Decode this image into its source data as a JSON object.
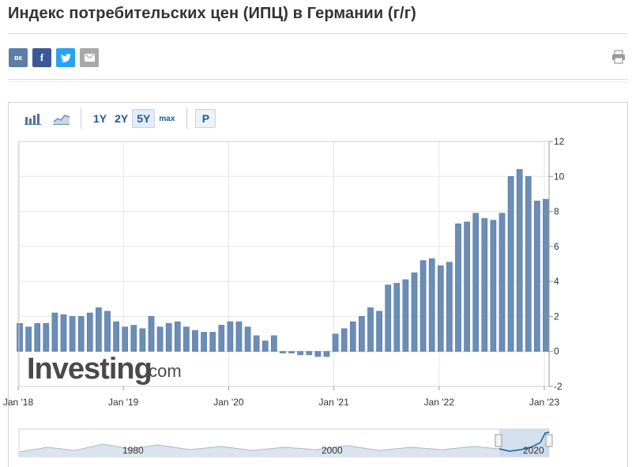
{
  "page": {
    "title": "Индекс потребительских цен (ИПЦ) в Германии (г/г)"
  },
  "share": {
    "vk": "вк",
    "facebook": "f",
    "twitter": "twitter-icon",
    "email": "email-icon",
    "print": "print-icon"
  },
  "toolbar": {
    "ranges": [
      "1Y",
      "2Y",
      "5Y",
      "max"
    ],
    "active_range": "5Y",
    "p_label": "P"
  },
  "watermark": {
    "brand": "Investing",
    "suffix": ".com"
  },
  "navigator": {
    "labels": [
      "1980",
      "2000",
      "2020"
    ]
  },
  "colors": {
    "bar": "#6b8db6",
    "bar_edge": "#4d73a3",
    "grid": "#e6e6e6",
    "accent": "#1f5a96"
  },
  "chart_data": {
    "type": "bar",
    "title": "Индекс потребительских цен (ИПЦ) в Германии (г/г)",
    "xlabel": "",
    "ylabel": "",
    "x_ticks": [
      "Jan '18",
      "Jan '19",
      "Jan '20",
      "Jan '21",
      "Jan '22",
      "Jan '23"
    ],
    "y_ticks": [
      "-2",
      "0",
      "2",
      "4",
      "6",
      "8",
      "10",
      "12"
    ],
    "ylim": [
      -2,
      12
    ],
    "grid": true,
    "y_axis_side": "right",
    "x": [
      "2018-01",
      "2018-02",
      "2018-03",
      "2018-04",
      "2018-05",
      "2018-06",
      "2018-07",
      "2018-08",
      "2018-09",
      "2018-10",
      "2018-11",
      "2018-12",
      "2019-01",
      "2019-02",
      "2019-03",
      "2019-04",
      "2019-05",
      "2019-06",
      "2019-07",
      "2019-08",
      "2019-09",
      "2019-10",
      "2019-11",
      "2019-12",
      "2020-01",
      "2020-02",
      "2020-03",
      "2020-04",
      "2020-05",
      "2020-06",
      "2020-07",
      "2020-08",
      "2020-09",
      "2020-10",
      "2020-11",
      "2020-12",
      "2021-01",
      "2021-02",
      "2021-03",
      "2021-04",
      "2021-05",
      "2021-06",
      "2021-07",
      "2021-08",
      "2021-09",
      "2021-10",
      "2021-11",
      "2021-12",
      "2022-01",
      "2022-02",
      "2022-03",
      "2022-04",
      "2022-05",
      "2022-06",
      "2022-07",
      "2022-08",
      "2022-09",
      "2022-10",
      "2022-11",
      "2022-12",
      "2023-01"
    ],
    "values": [
      1.6,
      1.4,
      1.6,
      1.6,
      2.2,
      2.1,
      2.0,
      2.0,
      2.2,
      2.5,
      2.3,
      1.7,
      1.4,
      1.5,
      1.3,
      2.0,
      1.4,
      1.6,
      1.7,
      1.4,
      1.2,
      1.1,
      1.1,
      1.5,
      1.7,
      1.7,
      1.4,
      0.9,
      0.6,
      0.9,
      -0.1,
      -0.1,
      -0.2,
      -0.2,
      -0.3,
      -0.3,
      1.0,
      1.3,
      1.7,
      2.0,
      2.5,
      2.3,
      3.8,
      3.9,
      4.1,
      4.5,
      5.2,
      5.3,
      4.9,
      5.1,
      7.3,
      7.4,
      7.9,
      7.6,
      7.5,
      7.9,
      10.0,
      10.4,
      10.0,
      8.6,
      8.7
    ]
  }
}
